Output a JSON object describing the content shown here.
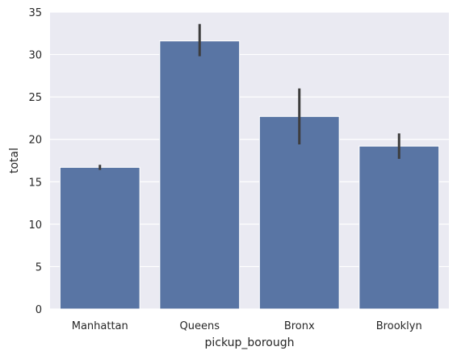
{
  "chart_data": {
    "type": "bar",
    "title": "",
    "xlabel": "pickup_borough",
    "ylabel": "total",
    "categories": [
      "Manhattan",
      "Queens",
      "Bronx",
      "Brooklyn"
    ],
    "values": [
      16.7,
      31.6,
      22.7,
      19.2
    ],
    "error_low": [
      16.4,
      29.8,
      19.4,
      17.7
    ],
    "error_high": [
      17.0,
      33.6,
      26.0,
      20.7
    ],
    "ylim": [
      0,
      35
    ],
    "yticks": [
      0,
      5,
      10,
      15,
      20,
      25,
      30,
      35
    ],
    "grid": true,
    "colors": {
      "background": "#EAEAF2",
      "bar": "#5975A4",
      "error_bar": "#3D3D3D",
      "grid": "#FFFFFF"
    }
  }
}
